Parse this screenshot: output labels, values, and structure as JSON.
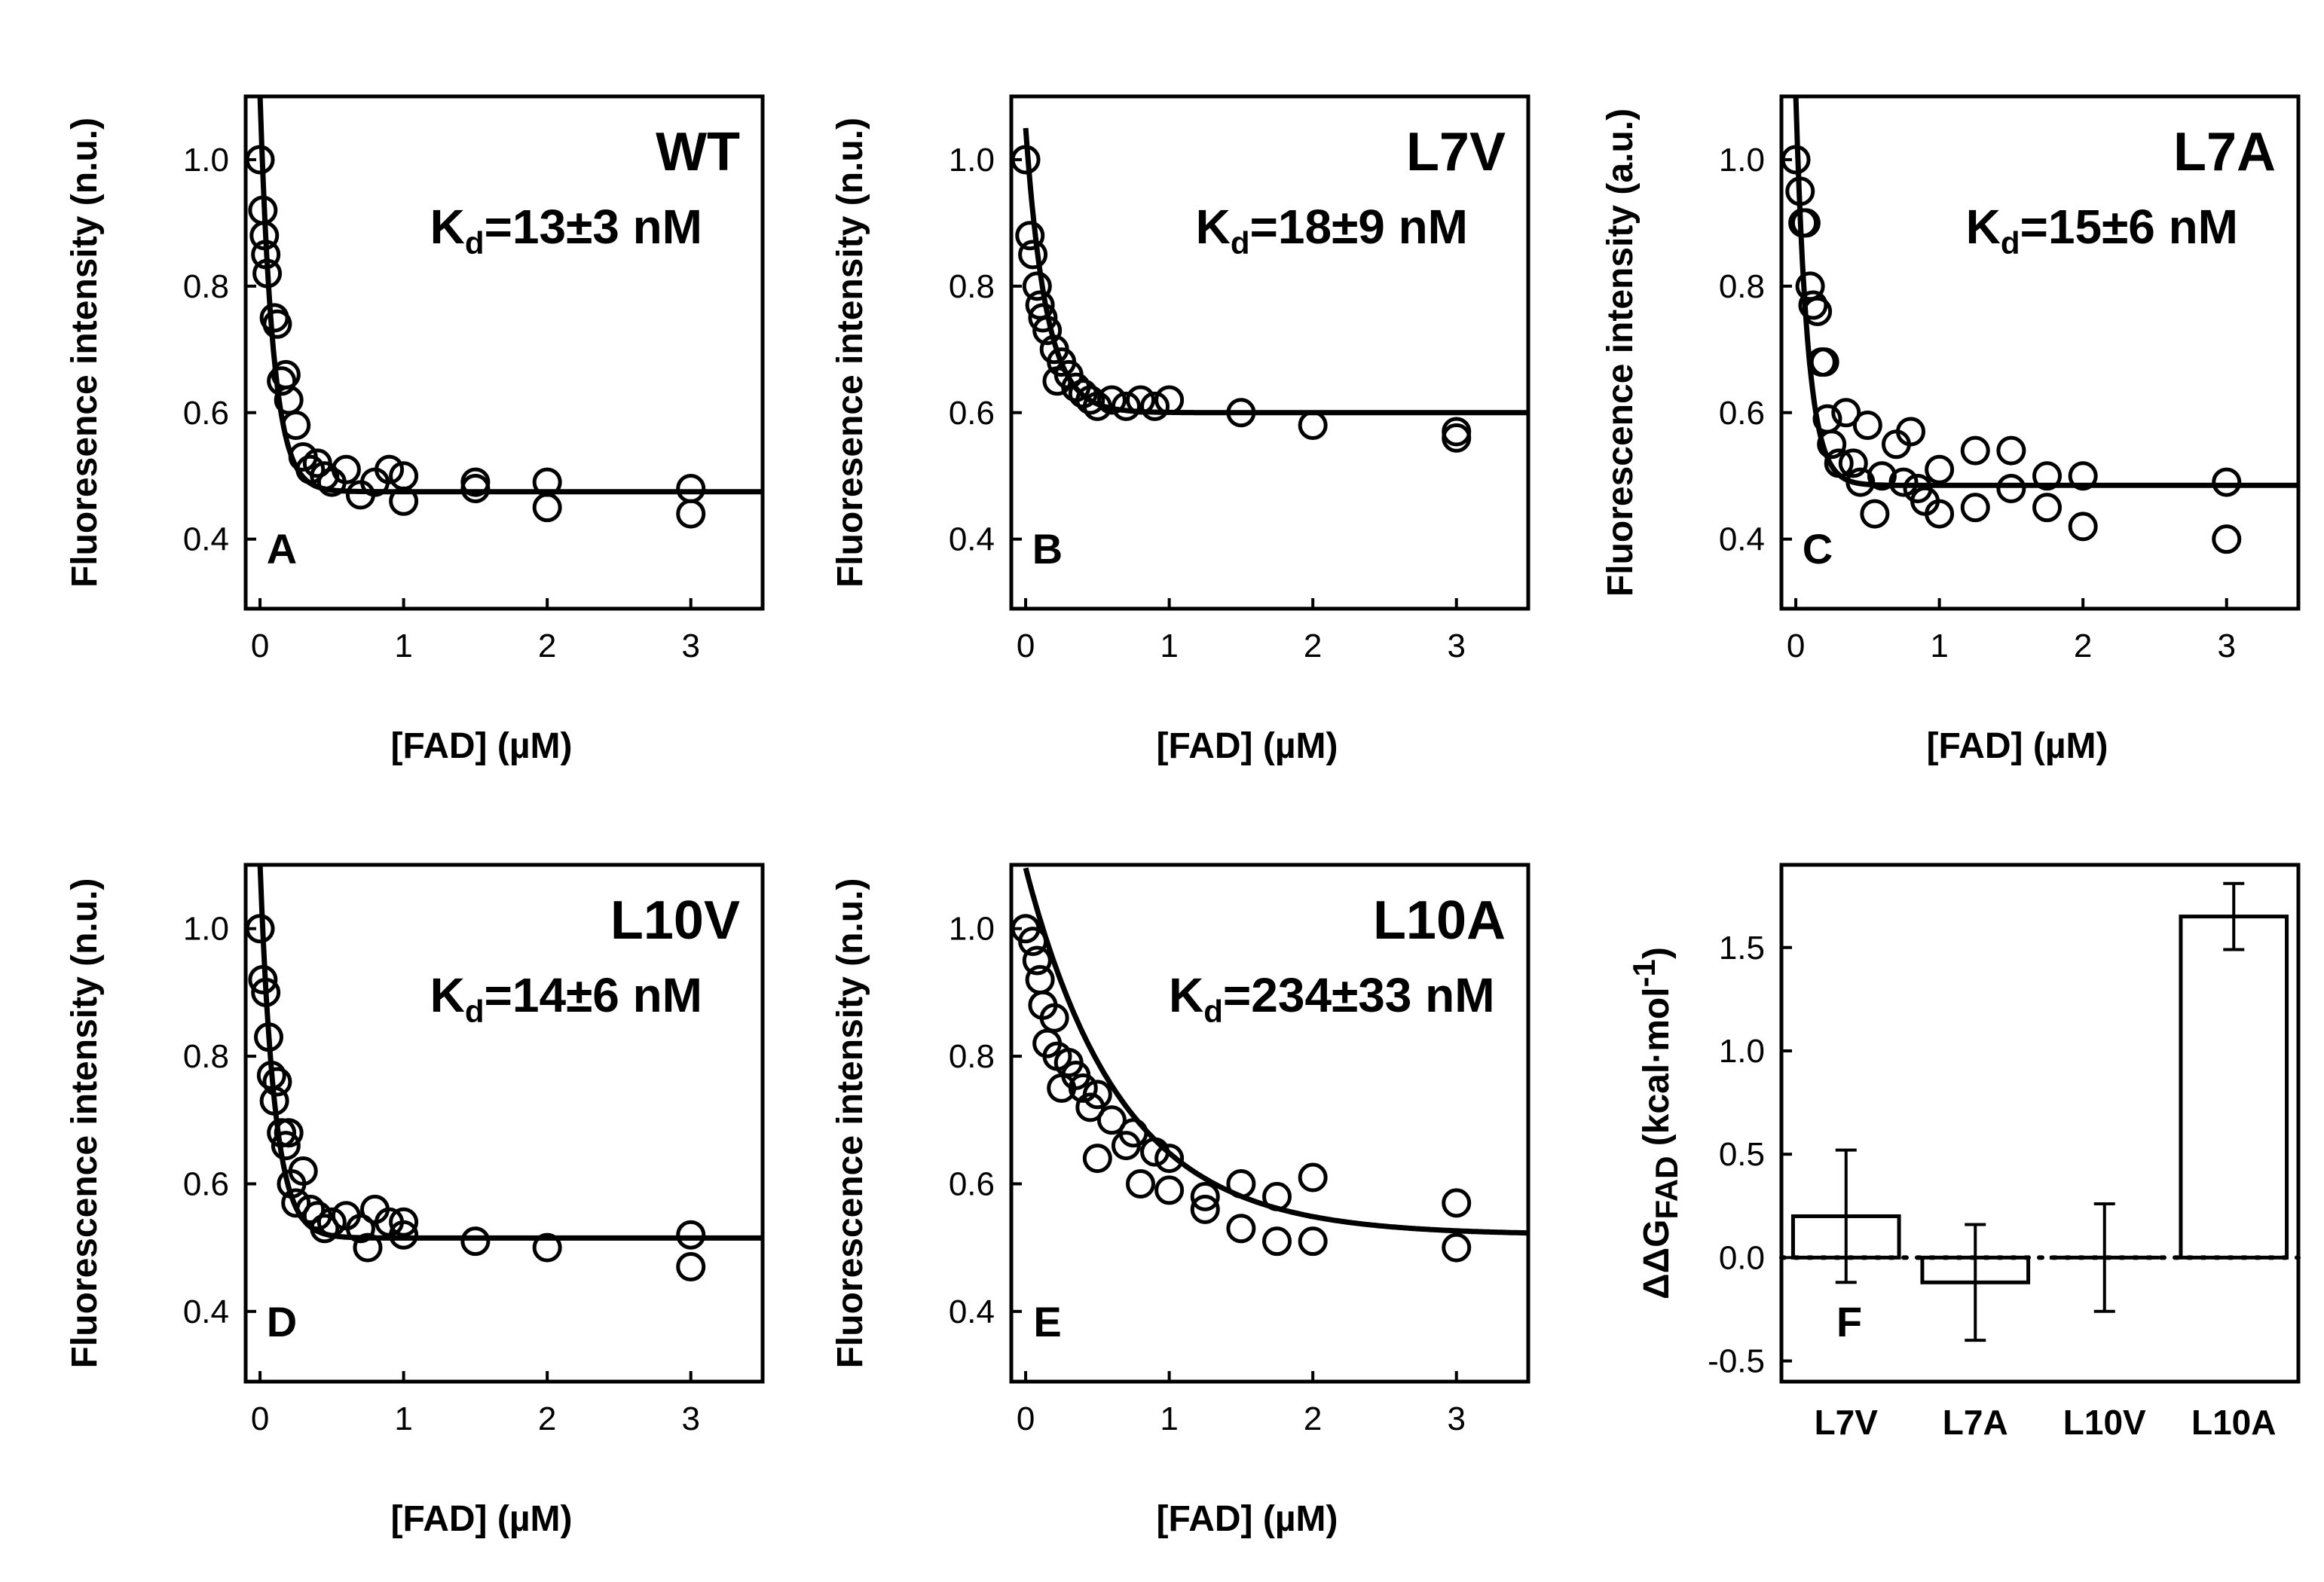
{
  "colors": {
    "ink": "#000000",
    "background": "#ffffff"
  },
  "chart_data": [
    {
      "type": "scatter",
      "panel": "A",
      "title": "WT",
      "kd_label": {
        "main": "K",
        "sub": "d",
        "rest": "=13±3 nM"
      },
      "xlabel": "[FAD] (µM)",
      "ylabel": "Fluoresence intensity (n.u.)",
      "xlim": [
        -0.1,
        3.5
      ],
      "ylim": [
        0.29,
        1.1
      ],
      "xticks": [
        0,
        1,
        2,
        3
      ],
      "xtick_labels": [
        "0",
        "1",
        "2",
        "3"
      ],
      "yticks": [
        0.4,
        0.6,
        0.8,
        1.0
      ],
      "ytick_labels": [
        "0.4",
        "0.6",
        "0.8",
        "1.0"
      ],
      "fit": {
        "model": "exponential_decay",
        "y0": 0.475,
        "amplitude": 0.625,
        "k": 11
      },
      "points": [
        {
          "x": 0,
          "y": 1.0
        },
        {
          "x": 0.02,
          "y": 0.92
        },
        {
          "x": 0.03,
          "y": 0.88
        },
        {
          "x": 0.04,
          "y": 0.85
        },
        {
          "x": 0.05,
          "y": 0.82
        },
        {
          "x": 0.1,
          "y": 0.75
        },
        {
          "x": 0.12,
          "y": 0.74
        },
        {
          "x": 0.15,
          "y": 0.65
        },
        {
          "x": 0.18,
          "y": 0.66
        },
        {
          "x": 0.2,
          "y": 0.62
        },
        {
          "x": 0.25,
          "y": 0.58
        },
        {
          "x": 0.3,
          "y": 0.53
        },
        {
          "x": 0.35,
          "y": 0.51
        },
        {
          "x": 0.4,
          "y": 0.52
        },
        {
          "x": 0.45,
          "y": 0.5
        },
        {
          "x": 0.5,
          "y": 0.49
        },
        {
          "x": 0.6,
          "y": 0.51
        },
        {
          "x": 0.7,
          "y": 0.47
        },
        {
          "x": 0.8,
          "y": 0.49
        },
        {
          "x": 0.9,
          "y": 0.51
        },
        {
          "x": 1.0,
          "y": 0.5
        },
        {
          "x": 1.0,
          "y": 0.46
        },
        {
          "x": 1.5,
          "y": 0.49
        },
        {
          "x": 1.5,
          "y": 0.48
        },
        {
          "x": 2.0,
          "y": 0.49
        },
        {
          "x": 2.0,
          "y": 0.45
        },
        {
          "x": 3.0,
          "y": 0.48
        },
        {
          "x": 3.0,
          "y": 0.44
        }
      ]
    },
    {
      "type": "scatter",
      "panel": "B",
      "title": "L7V",
      "kd_label": {
        "main": "K",
        "sub": "d",
        "rest": "=18±9 nM"
      },
      "xlabel": "[FAD] (µM)",
      "ylabel": "Fluoresence intensity (n.u.)",
      "xlim": [
        -0.1,
        3.5
      ],
      "ylim": [
        0.29,
        1.1
      ],
      "xticks": [
        0,
        1,
        2,
        3
      ],
      "xtick_labels": [
        "0",
        "1",
        "2",
        "3"
      ],
      "yticks": [
        0.4,
        0.6,
        0.8,
        1.0
      ],
      "ytick_labels": [
        "0.4",
        "0.6",
        "0.8",
        "1.0"
      ],
      "fit": {
        "model": "exponential_decay",
        "y0": 0.6,
        "amplitude": 0.45,
        "k": 7
      },
      "points": [
        {
          "x": 0,
          "y": 1.0
        },
        {
          "x": 0.03,
          "y": 0.88
        },
        {
          "x": 0.05,
          "y": 0.85
        },
        {
          "x": 0.08,
          "y": 0.8
        },
        {
          "x": 0.1,
          "y": 0.77
        },
        {
          "x": 0.12,
          "y": 0.75
        },
        {
          "x": 0.15,
          "y": 0.73
        },
        {
          "x": 0.2,
          "y": 0.7
        },
        {
          "x": 0.22,
          "y": 0.65
        },
        {
          "x": 0.25,
          "y": 0.68
        },
        {
          "x": 0.3,
          "y": 0.66
        },
        {
          "x": 0.35,
          "y": 0.64
        },
        {
          "x": 0.4,
          "y": 0.63
        },
        {
          "x": 0.45,
          "y": 0.62
        },
        {
          "x": 0.5,
          "y": 0.61
        },
        {
          "x": 0.6,
          "y": 0.62
        },
        {
          "x": 0.7,
          "y": 0.61
        },
        {
          "x": 0.8,
          "y": 0.62
        },
        {
          "x": 0.9,
          "y": 0.61
        },
        {
          "x": 1.0,
          "y": 0.62
        },
        {
          "x": 1.5,
          "y": 0.6
        },
        {
          "x": 2.0,
          "y": 0.58
        },
        {
          "x": 3.0,
          "y": 0.57
        },
        {
          "x": 3.0,
          "y": 0.56
        }
      ]
    },
    {
      "type": "scatter",
      "panel": "C",
      "title": "L7A",
      "kd_label": {
        "main": "K",
        "sub": "d",
        "rest": "=15±6 nM"
      },
      "xlabel": "[FAD] (µM)",
      "ylabel": "Fluorescence intensity (a.u.)",
      "xlim": [
        -0.1,
        3.5
      ],
      "ylim": [
        0.29,
        1.1
      ],
      "xticks": [
        0,
        1,
        2,
        3
      ],
      "xtick_labels": [
        "0",
        "1",
        "2",
        "3"
      ],
      "yticks": [
        0.4,
        0.6,
        0.8,
        1.0
      ],
      "ytick_labels": [
        "0.4",
        "0.6",
        "0.8",
        "1.0"
      ],
      "fit": {
        "model": "exponential_decay",
        "y0": 0.485,
        "amplitude": 0.615,
        "k": 12
      },
      "points": [
        {
          "x": 0,
          "y": 1.0
        },
        {
          "x": 0.03,
          "y": 0.95
        },
        {
          "x": 0.05,
          "y": 0.9
        },
        {
          "x": 0.07,
          "y": 0.9
        },
        {
          "x": 0.1,
          "y": 0.8
        },
        {
          "x": 0.12,
          "y": 0.77
        },
        {
          "x": 0.15,
          "y": 0.76
        },
        {
          "x": 0.18,
          "y": 0.68
        },
        {
          "x": 0.2,
          "y": 0.68
        },
        {
          "x": 0.22,
          "y": 0.59
        },
        {
          "x": 0.25,
          "y": 0.55
        },
        {
          "x": 0.3,
          "y": 0.52
        },
        {
          "x": 0.35,
          "y": 0.6
        },
        {
          "x": 0.4,
          "y": 0.52
        },
        {
          "x": 0.45,
          "y": 0.49
        },
        {
          "x": 0.5,
          "y": 0.58
        },
        {
          "x": 0.55,
          "y": 0.44
        },
        {
          "x": 0.6,
          "y": 0.5
        },
        {
          "x": 0.7,
          "y": 0.55
        },
        {
          "x": 0.75,
          "y": 0.49
        },
        {
          "x": 0.8,
          "y": 0.57
        },
        {
          "x": 0.85,
          "y": 0.48
        },
        {
          "x": 0.9,
          "y": 0.46
        },
        {
          "x": 1.0,
          "y": 0.44
        },
        {
          "x": 1.0,
          "y": 0.51
        },
        {
          "x": 1.25,
          "y": 0.54
        },
        {
          "x": 1.25,
          "y": 0.45
        },
        {
          "x": 1.5,
          "y": 0.54
        },
        {
          "x": 1.5,
          "y": 0.48
        },
        {
          "x": 1.75,
          "y": 0.5
        },
        {
          "x": 1.75,
          "y": 0.45
        },
        {
          "x": 2.0,
          "y": 0.5
        },
        {
          "x": 2.0,
          "y": 0.42
        },
        {
          "x": 3.0,
          "y": 0.49
        },
        {
          "x": 3.0,
          "y": 0.4
        }
      ]
    },
    {
      "type": "scatter",
      "panel": "D",
      "title": "L10V",
      "kd_label": {
        "main": "K",
        "sub": "d",
        "rest": "=14±6 nM"
      },
      "xlabel": "[FAD] (µM)",
      "ylabel": "Fluorescence intensity (n.u.)",
      "xlim": [
        -0.1,
        3.5
      ],
      "ylim": [
        0.29,
        1.1
      ],
      "xticks": [
        0,
        1,
        2,
        3
      ],
      "xtick_labels": [
        "0",
        "1",
        "2",
        "3"
      ],
      "yticks": [
        0.4,
        0.6,
        0.8,
        1.0
      ],
      "ytick_labels": [
        "0.4",
        "0.6",
        "0.8",
        "1.0"
      ],
      "fit": {
        "model": "exponential_decay",
        "y0": 0.515,
        "amplitude": 0.585,
        "k": 10
      },
      "points": [
        {
          "x": 0,
          "y": 1.0
        },
        {
          "x": 0.02,
          "y": 0.92
        },
        {
          "x": 0.04,
          "y": 0.9
        },
        {
          "x": 0.06,
          "y": 0.83
        },
        {
          "x": 0.08,
          "y": 0.77
        },
        {
          "x": 0.1,
          "y": 0.73
        },
        {
          "x": 0.12,
          "y": 0.76
        },
        {
          "x": 0.15,
          "y": 0.68
        },
        {
          "x": 0.18,
          "y": 0.66
        },
        {
          "x": 0.2,
          "y": 0.68
        },
        {
          "x": 0.22,
          "y": 0.6
        },
        {
          "x": 0.25,
          "y": 0.57
        },
        {
          "x": 0.3,
          "y": 0.62
        },
        {
          "x": 0.35,
          "y": 0.56
        },
        {
          "x": 0.4,
          "y": 0.55
        },
        {
          "x": 0.45,
          "y": 0.53
        },
        {
          "x": 0.5,
          "y": 0.54
        },
        {
          "x": 0.6,
          "y": 0.55
        },
        {
          "x": 0.7,
          "y": 0.53
        },
        {
          "x": 0.75,
          "y": 0.5
        },
        {
          "x": 0.8,
          "y": 0.56
        },
        {
          "x": 0.9,
          "y": 0.54
        },
        {
          "x": 1.0,
          "y": 0.54
        },
        {
          "x": 1.0,
          "y": 0.52
        },
        {
          "x": 1.5,
          "y": 0.51
        },
        {
          "x": 2.0,
          "y": 0.5
        },
        {
          "x": 3.0,
          "y": 0.52
        },
        {
          "x": 3.0,
          "y": 0.47
        }
      ]
    },
    {
      "type": "scatter",
      "panel": "E",
      "title": "L10A",
      "kd_label": {
        "main": "K",
        "sub": "d",
        "rest": "=234±33 nM"
      },
      "xlabel": "[FAD] (µM)",
      "ylabel": "Fluorescence intensity (n.u.)",
      "xlim": [
        -0.1,
        3.5
      ],
      "ylim": [
        0.29,
        1.1
      ],
      "xticks": [
        0,
        1,
        2,
        3
      ],
      "xtick_labels": [
        "0",
        "1",
        "2",
        "3"
      ],
      "yticks": [
        0.4,
        0.6,
        0.8,
        1.0
      ],
      "ytick_labels": [
        "0.4",
        "0.6",
        "0.8",
        "1.0"
      ],
      "fit": {
        "model": "exponential_decay",
        "y0": 0.52,
        "amplitude": 0.575,
        "k": 1.5
      },
      "points": [
        {
          "x": 0,
          "y": 1.0
        },
        {
          "x": 0.05,
          "y": 0.98
        },
        {
          "x": 0.08,
          "y": 0.95
        },
        {
          "x": 0.1,
          "y": 0.92
        },
        {
          "x": 0.12,
          "y": 0.88
        },
        {
          "x": 0.15,
          "y": 0.82
        },
        {
          "x": 0.2,
          "y": 0.86
        },
        {
          "x": 0.22,
          "y": 0.8
        },
        {
          "x": 0.25,
          "y": 0.75
        },
        {
          "x": 0.3,
          "y": 0.79
        },
        {
          "x": 0.35,
          "y": 0.77
        },
        {
          "x": 0.4,
          "y": 0.75
        },
        {
          "x": 0.45,
          "y": 0.72
        },
        {
          "x": 0.5,
          "y": 0.74
        },
        {
          "x": 0.5,
          "y": 0.64
        },
        {
          "x": 0.6,
          "y": 0.7
        },
        {
          "x": 0.7,
          "y": 0.66
        },
        {
          "x": 0.75,
          "y": 0.68
        },
        {
          "x": 0.8,
          "y": 0.6
        },
        {
          "x": 0.9,
          "y": 0.65
        },
        {
          "x": 1.0,
          "y": 0.59
        },
        {
          "x": 1.0,
          "y": 0.64
        },
        {
          "x": 1.25,
          "y": 0.58
        },
        {
          "x": 1.25,
          "y": 0.56
        },
        {
          "x": 1.5,
          "y": 0.6
        },
        {
          "x": 1.5,
          "y": 0.53
        },
        {
          "x": 1.75,
          "y": 0.58
        },
        {
          "x": 1.75,
          "y": 0.51
        },
        {
          "x": 2.0,
          "y": 0.61
        },
        {
          "x": 2.0,
          "y": 0.51
        },
        {
          "x": 3.0,
          "y": 0.57
        },
        {
          "x": 3.0,
          "y": 0.5
        }
      ]
    },
    {
      "type": "bar",
      "panel": "F",
      "ylabel_parts": {
        "main": "ΔΔG",
        "sub": "FAD",
        "unit": " (kcal·mol",
        "sup": "-1",
        "close": ")"
      },
      "categories": [
        "L7V",
        "L7A",
        "L10V",
        "L10A"
      ],
      "values": [
        0.2,
        -0.12,
        0.0,
        1.65
      ],
      "errors": [
        0.32,
        0.28,
        0.26,
        0.16
      ],
      "ylim": [
        -0.6,
        1.9
      ],
      "yticks": [
        -0.5,
        0.0,
        0.5,
        1.0,
        1.5
      ],
      "ytick_labels": [
        "-0.5",
        "0.0",
        "0.5",
        "1.0",
        "1.5"
      ],
      "reference_line": 0.0,
      "reference_style": "dotted"
    }
  ]
}
